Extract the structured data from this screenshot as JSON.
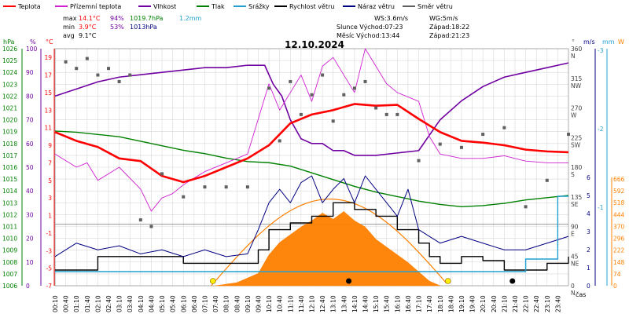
{
  "legend": [
    {
      "label": "Teplota",
      "color": "#ff0000"
    },
    {
      "label": "Přízemní teplota",
      "color": "#d020d0"
    },
    {
      "label": "Vlhkost",
      "color": "#7000a0"
    },
    {
      "label": "Tlak",
      "color": "#008000"
    },
    {
      "label": "Srážky",
      "color": "#20a0d0"
    },
    {
      "label": "Rychlost větru",
      "color": "#000000"
    },
    {
      "label": "Náraz větru",
      "color": "#000080"
    },
    {
      "label": "Směr větru",
      "color": "#606060"
    }
  ],
  "stats": {
    "max_label": "max",
    "max_temp": "14.1°C",
    "max_hum": "94%",
    "max_press": "1019.7hPa",
    "max_rain": "1.2mm",
    "min_label": "min",
    "min_temp": "3.9°C",
    "min_hum": "53%",
    "min_press": "1013hPa",
    "avg_label": "avg",
    "avg_temp": "9.1°C"
  },
  "wind_info": {
    "ws": "WS:3.6m/s",
    "wg": "WG:5m/s",
    "sun": "Slunce Východ:07:23",
    "sun_set": "Západ:18:22",
    "moon": "Měsíc  Východ:13:44",
    "moon_set": "Západ:21:23"
  },
  "title": "12.10.2024",
  "axis_units": {
    "hpa": "hPa",
    "pct": "%",
    "degc": "°C",
    "deg": "°",
    "ms": "m/s",
    "mm": "mm",
    "w": "W",
    "cas": "čas"
  },
  "left_axes": {
    "hpa": [
      "1026",
      "1025",
      "1024",
      "1023",
      "1022",
      "1021",
      "1020",
      "1019",
      "1018",
      "1017",
      "1016",
      "1015",
      "1014",
      "1013",
      "1012",
      "1011",
      "1010",
      "1009",
      "1008",
      "1007",
      "1006"
    ],
    "pct": [
      "100",
      "90",
      "80",
      "70",
      "60",
      "50",
      "40",
      "30",
      "20",
      "10",
      "0"
    ],
    "degc": [
      "19",
      "17",
      "15",
      "13",
      "11",
      "9",
      "7",
      "5",
      "3",
      "1",
      "-1",
      "-3",
      "-5",
      "-7"
    ]
  },
  "right_axes": {
    "dir_labels": [
      "360 N",
      "315 NW",
      "270 W",
      "225 SW",
      "180 S",
      "135 SE",
      "90 E",
      "45 NE",
      "0 N"
    ],
    "ms": [
      "3",
      "2",
      "1",
      "",
      "",
      "",
      "",
      "",
      "",
      ""
    ],
    "ms_lower": [
      "6",
      "5",
      "4",
      "3",
      "2",
      "1",
      "0"
    ],
    "mm": [
      "-3",
      "-2",
      "-1"
    ],
    "w": [
      "666",
      "592",
      "518",
      "444",
      "370",
      "296",
      "222",
      "148",
      "74",
      "0"
    ]
  },
  "x_ticks": [
    "00:10",
    "00:40",
    "01:10",
    "01:40",
    "02:10",
    "02:40",
    "03:10",
    "03:40",
    "04:10",
    "04:40",
    "05:10",
    "05:40",
    "06:10",
    "06:40",
    "07:10",
    "07:40",
    "08:10",
    "08:40",
    "09:10",
    "09:40",
    "10:10",
    "10:40",
    "11:10",
    "11:40",
    "12:10",
    "12:40",
    "13:10",
    "13:40",
    "14:10",
    "14:40",
    "15:10",
    "15:40",
    "16:10",
    "16:40",
    "17:10",
    "17:40",
    "18:10",
    "18:40",
    "19:10",
    "19:40",
    "20:10",
    "20:40",
    "21:10",
    "21:40",
    "22:10",
    "22:40",
    "23:10",
    "23:40"
  ],
  "colors": {
    "temp": "#ff0000",
    "ground": "#d020d0",
    "hum": "#7000a0",
    "press": "#008000",
    "rain": "#20a0d0",
    "wind": "#000000",
    "gust": "#000080",
    "dir": "#606060",
    "solar": "#ff8000",
    "grid": "#d8d8d8"
  },
  "chart_data": {
    "type": "line",
    "x_unit": "hour",
    "x_range": [
      0,
      24
    ],
    "temperature": {
      "ylim": [
        -7,
        20
      ],
      "x": [
        0,
        1,
        2,
        3,
        4,
        5,
        6,
        7,
        8,
        9,
        10,
        11,
        12,
        13,
        14,
        15,
        16,
        17,
        18,
        19,
        20,
        21,
        22,
        23,
        24
      ],
      "y": [
        10.5,
        9.5,
        8.8,
        7.5,
        7.2,
        5.5,
        4.8,
        5.5,
        6.5,
        7.5,
        9,
        11.5,
        12.5,
        13,
        13.7,
        13.5,
        13.6,
        12,
        10.5,
        9.5,
        9.3,
        9,
        8.5,
        8.3,
        8.2
      ]
    },
    "ground_temperature": {
      "x": [
        0,
        1,
        1.5,
        2,
        3,
        4,
        4.5,
        5,
        5.5,
        6,
        7,
        8,
        9,
        9.5,
        10,
        10.5,
        11,
        11.5,
        12,
        12.5,
        13,
        13.5,
        14,
        14.5,
        15,
        15.5,
        16,
        17,
        17.5,
        18,
        19,
        20,
        21,
        22,
        23,
        24
      ],
      "y": [
        8,
        6.5,
        7,
        5,
        6.5,
        4,
        1.5,
        3,
        3.5,
        4.5,
        6,
        7,
        8,
        12,
        16,
        13,
        15,
        17,
        14,
        18,
        19,
        17,
        15,
        20,
        18,
        16,
        15,
        14,
        10,
        8,
        7.5,
        7.5,
        7.8,
        7.2,
        7,
        7
      ]
    },
    "humidity": {
      "ylim": [
        0,
        100
      ],
      "x": [
        0,
        1,
        2,
        3,
        4,
        5,
        6,
        7,
        8,
        9,
        9.8,
        10.2,
        10.6,
        11,
        11.5,
        12,
        12.5,
        13,
        13.5,
        14,
        15,
        16,
        17,
        18,
        19,
        20,
        21,
        22,
        23,
        24
      ],
      "y": [
        80,
        83,
        86,
        88,
        89,
        90,
        91,
        92,
        92,
        93,
        93,
        85,
        80,
        70,
        62,
        60,
        60,
        57,
        57,
        55,
        55,
        56,
        57,
        70,
        78,
        84,
        88,
        90,
        92,
        94
      ]
    },
    "pressure": {
      "ylim": [
        1006,
        1027
      ],
      "x": [
        0,
        1,
        2,
        3,
        4,
        5,
        6,
        7,
        8,
        9,
        10,
        11,
        12,
        13,
        14,
        15,
        16,
        17,
        18,
        19,
        20,
        21,
        22,
        23,
        24
      ],
      "y": [
        1019.7,
        1019.6,
        1019.4,
        1019.2,
        1018.8,
        1018.4,
        1018,
        1017.7,
        1017.3,
        1017,
        1016.9,
        1016.6,
        1016,
        1015.4,
        1014.8,
        1014.3,
        1013.9,
        1013.5,
        1013.2,
        1013.0,
        1013.1,
        1013.3,
        1013.6,
        1013.8,
        1014
      ]
    },
    "rain_mm": {
      "x": [
        0,
        21,
        22,
        23,
        23.5,
        24
      ],
      "y": [
        0,
        0,
        0.2,
        0.2,
        1.2,
        1.2
      ]
    },
    "wind_speed_ms": {
      "ylim": [
        0,
        7
      ],
      "x": [
        0,
        2,
        4,
        6,
        8,
        9,
        9.5,
        10,
        11,
        12,
        13,
        14,
        15,
        16,
        17,
        17.5,
        18,
        19,
        20,
        21,
        22,
        23,
        24
      ],
      "y": [
        0,
        1,
        1,
        0.5,
        0.5,
        0.5,
        1.5,
        3,
        3.5,
        4,
        5,
        4.5,
        4,
        3,
        2,
        1,
        0.5,
        1,
        0.7,
        0,
        0,
        0.5,
        1
      ]
    },
    "wind_gust_ms": {
      "x": [
        0,
        1,
        2,
        3,
        4,
        5,
        6,
        7,
        8,
        9,
        9.5,
        10,
        10.5,
        11,
        11.5,
        12,
        12.5,
        13,
        13.5,
        14,
        14.5,
        15,
        15.5,
        16,
        16.5,
        17,
        17.5,
        18,
        19,
        20,
        21,
        22,
        23,
        24
      ],
      "y": [
        1,
        2,
        1.5,
        1.8,
        1.2,
        1.5,
        1,
        1.5,
        1,
        1.2,
        3,
        5,
        6,
        5,
        6.5,
        7,
        5,
        6,
        6.8,
        5,
        7,
        6,
        5,
        4,
        6,
        3,
        2.5,
        2,
        2.5,
        2,
        1.5,
        1.5,
        2,
        2.5
      ]
    },
    "solar_w": {
      "ylim": [
        0,
        700
      ],
      "x": [
        7.5,
        8.5,
        9.5,
        10,
        10.5,
        11,
        11.5,
        12,
        12.5,
        13,
        13.5,
        14,
        14.5,
        15,
        15.5,
        16,
        16.5,
        17,
        17.5,
        18
      ],
      "y": [
        0,
        20,
        80,
        200,
        280,
        330,
        380,
        420,
        470,
        430,
        480,
        420,
        380,
        300,
        250,
        200,
        150,
        90,
        30,
        0
      ]
    },
    "wind_direction_deg": {
      "ylim": [
        0,
        360
      ],
      "x": [
        0.5,
        1,
        1.5,
        2,
        2.5,
        3,
        3.5,
        4,
        4.5,
        5,
        6,
        7,
        8,
        9,
        10,
        10.5,
        11,
        11.5,
        12,
        12.5,
        13,
        13.5,
        14,
        14.5,
        15,
        15.5,
        16,
        17,
        18,
        19,
        20,
        21,
        22,
        23,
        24
      ],
      "y": [
        340,
        330,
        345,
        320,
        330,
        310,
        320,
        100,
        90,
        170,
        135,
        150,
        150,
        150,
        300,
        220,
        310,
        260,
        290,
        320,
        250,
        290,
        300,
        310,
        270,
        260,
        260,
        190,
        215,
        210,
        230,
        240,
        120,
        160,
        230
      ]
    }
  }
}
